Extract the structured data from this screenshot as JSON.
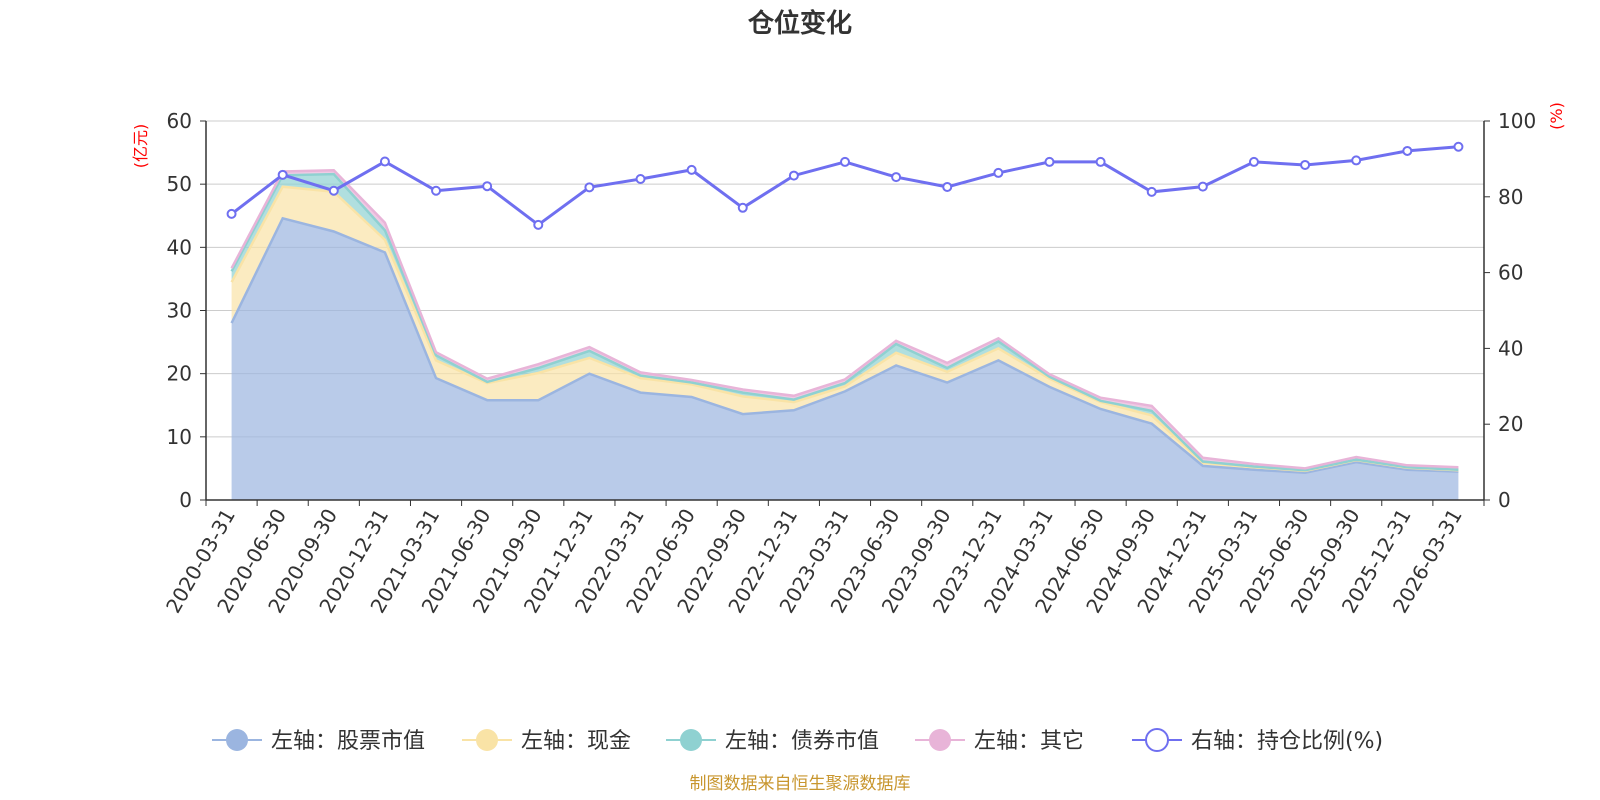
{
  "chart_data": {
    "type": "area",
    "title": "仓位变化",
    "left_axis_unit": "(亿元)",
    "right_axis_unit": "(%)",
    "left_ylim": [
      0,
      60
    ],
    "left_ticks": [
      0,
      10,
      20,
      30,
      40,
      50,
      60
    ],
    "right_ylim": [
      0,
      100
    ],
    "right_ticks": [
      0,
      20,
      40,
      60,
      80,
      100
    ],
    "categories": [
      "2020-03-31",
      "2020-06-30",
      "2020-09-30",
      "2020-12-31",
      "2021-03-31",
      "2021-06-30",
      "2021-09-30",
      "2021-12-31",
      "2022-03-31",
      "2022-06-30",
      "2022-09-30",
      "2022-12-31",
      "2023-03-31",
      "2023-06-30",
      "2023-09-30",
      "2023-12-31",
      "2024-03-31",
      "2024-06-30",
      "2024-09-30",
      "2024-12-31",
      "2025-03-31",
      "2025-06-30",
      "2025-09-30",
      "2025-12-31",
      "2026-03-31"
    ],
    "series": [
      {
        "name": "左轴：股票市值",
        "axis": "left",
        "stacked": true,
        "color": "#9bb5e0",
        "values": [
          28.0,
          44.6,
          42.5,
          39.2,
          19.3,
          15.8,
          15.8,
          20.0,
          17.0,
          16.3,
          13.6,
          14.2,
          17.2,
          21.3,
          18.6,
          22.1,
          17.9,
          14.4,
          12.1,
          5.4,
          4.8,
          4.3,
          6.0,
          4.8,
          4.5
        ]
      },
      {
        "name": "左轴：现金",
        "axis": "left",
        "stacked": true,
        "color": "#f9e3a6",
        "values": [
          6.5,
          5.0,
          6.3,
          2.0,
          2.8,
          2.7,
          4.3,
          2.5,
          2.3,
          2.0,
          2.8,
          1.3,
          0.8,
          2.0,
          1.7,
          1.9,
          1.3,
          1.1,
          1.3,
          0.5,
          0.4,
          0.3,
          0.3,
          0.3,
          0.2
        ]
      },
      {
        "name": "左轴：债券市值",
        "axis": "left",
        "stacked": true,
        "color": "#8fd1d1",
        "values": [
          1.7,
          1.8,
          2.8,
          1.5,
          0.8,
          0.2,
          0.8,
          1.1,
          0.4,
          0.3,
          0.6,
          0.4,
          0.5,
          1.4,
          0.6,
          1.1,
          0.3,
          0.2,
          0.7,
          0.2,
          0.1,
          0.1,
          0.1,
          0.1,
          0.1
        ]
      },
      {
        "name": "左轴：其它",
        "axis": "left",
        "stacked": true,
        "color": "#e8b4d8",
        "values": [
          0.5,
          0.6,
          0.6,
          1.2,
          0.5,
          0.5,
          0.6,
          0.6,
          0.5,
          0.4,
          0.5,
          0.6,
          0.6,
          0.5,
          0.8,
          0.5,
          0.4,
          0.5,
          0.8,
          0.6,
          0.4,
          0.3,
          0.4,
          0.3,
          0.4
        ]
      },
      {
        "name": "右轴：持仓比例(%)",
        "axis": "right",
        "stacked": false,
        "color": "#6f6ff0",
        "values": [
          75.5,
          85.8,
          81.6,
          89.3,
          81.6,
          82.8,
          72.6,
          82.5,
          84.7,
          87.1,
          77.1,
          85.6,
          89.2,
          85.2,
          82.6,
          86.3,
          89.2,
          89.2,
          81.3,
          82.7,
          89.2,
          88.4,
          89.6,
          92.1,
          93.2
        ]
      }
    ],
    "source_text": "制图数据来自恒生聚源数据库"
  }
}
